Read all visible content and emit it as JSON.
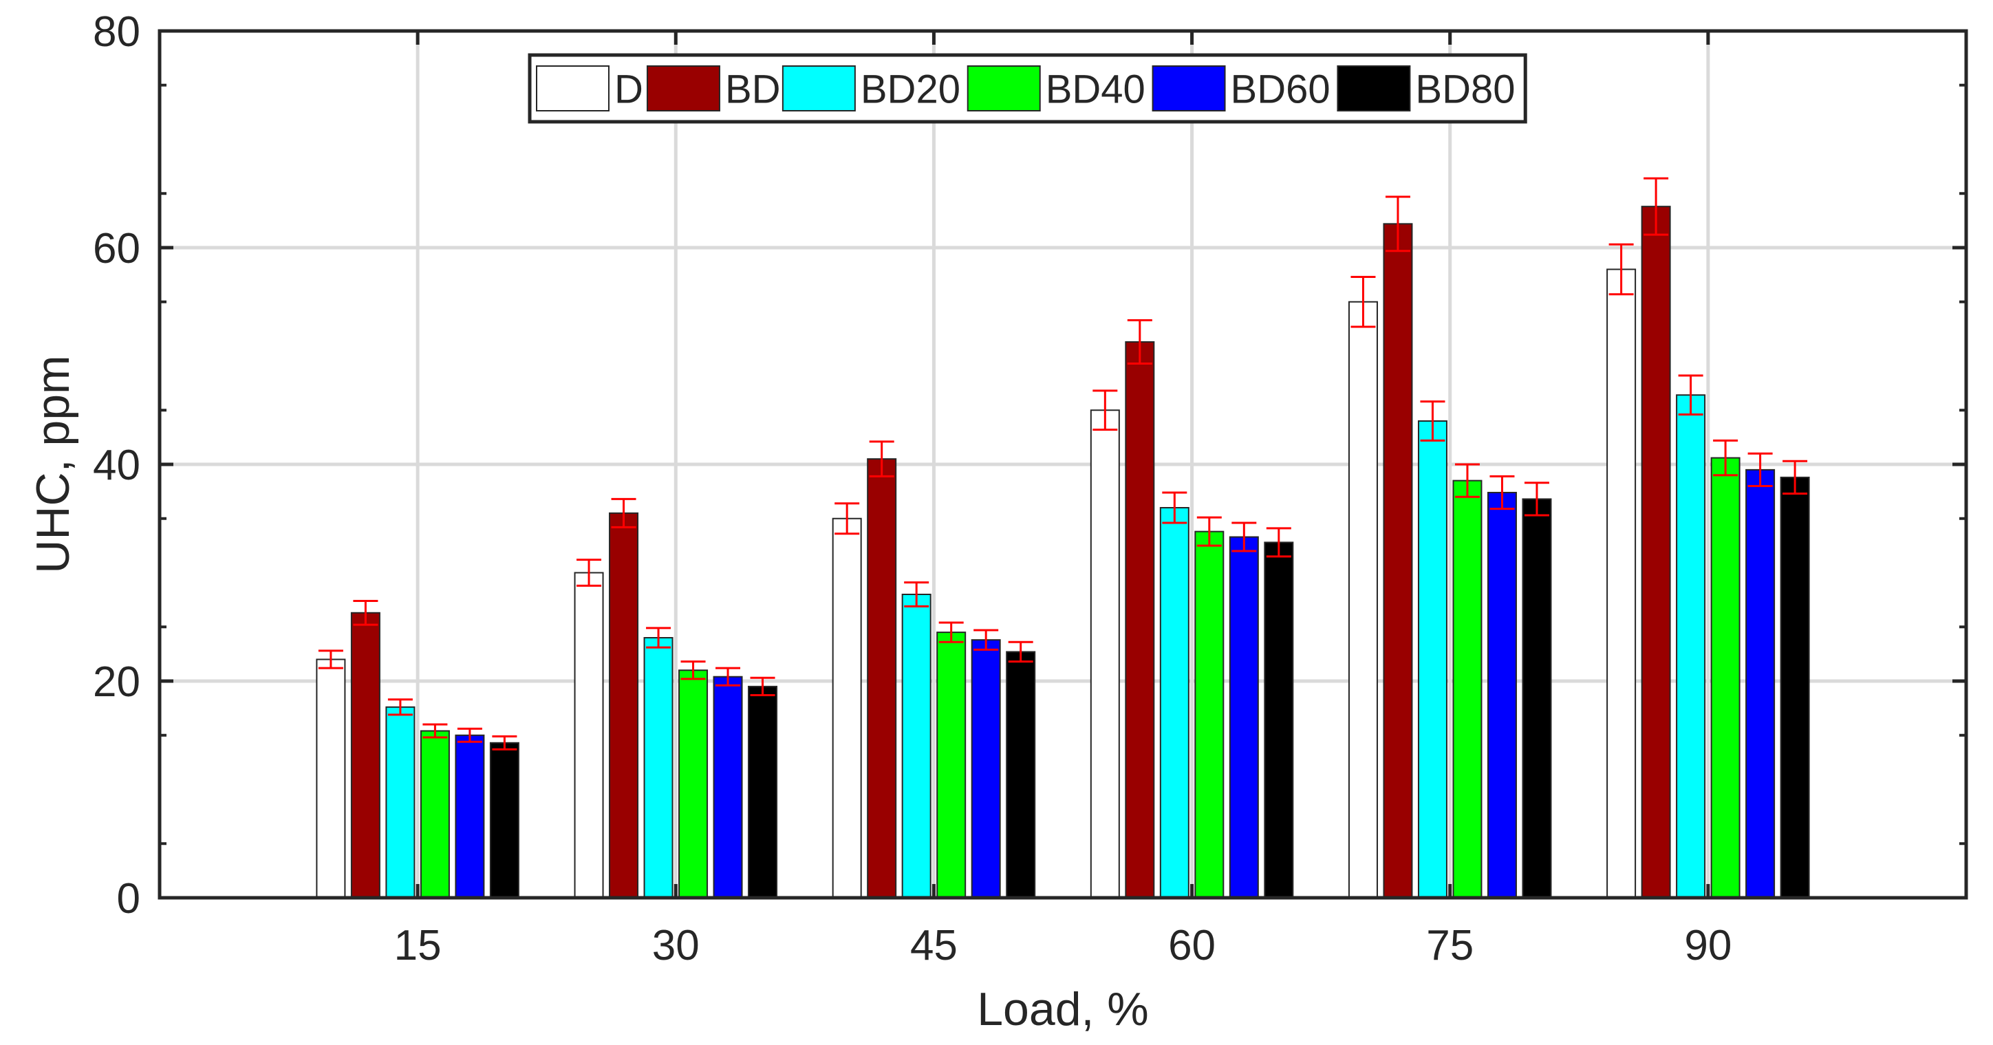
{
  "chart_data": {
    "type": "bar",
    "xlabel": "Load, %",
    "ylabel": "UHC, ppm",
    "categories": [
      "15",
      "30",
      "45",
      "60",
      "75",
      "90"
    ],
    "ylim": [
      0,
      80
    ],
    "yticks": [
      0,
      20,
      40,
      60,
      80
    ],
    "grid": true,
    "legend_position": "top-center",
    "legend_orientation": "horizontal",
    "error_bar_color": "#ff0000",
    "series": [
      {
        "name": "D",
        "color": "#ffffff",
        "values": [
          22,
          30,
          35,
          45,
          55,
          58
        ],
        "errors": [
          0.8,
          1.2,
          1.4,
          1.8,
          2.3,
          2.3
        ]
      },
      {
        "name": "BD",
        "color": "#990000",
        "values": [
          26.3,
          35.5,
          40.5,
          51.3,
          62.2,
          63.8
        ],
        "errors": [
          1.1,
          1.3,
          1.6,
          2.0,
          2.5,
          2.6
        ]
      },
      {
        "name": "BD20",
        "color": "#00ffff",
        "values": [
          17.6,
          24,
          28,
          36,
          44,
          46.4
        ],
        "errors": [
          0.7,
          0.9,
          1.1,
          1.4,
          1.8,
          1.8
        ]
      },
      {
        "name": "BD40",
        "color": "#00ff00",
        "values": [
          15.4,
          21,
          24.5,
          33.8,
          38.5,
          40.6
        ],
        "errors": [
          0.6,
          0.8,
          0.9,
          1.3,
          1.5,
          1.6
        ]
      },
      {
        "name": "BD60",
        "color": "#0000ff",
        "values": [
          15,
          20.4,
          23.8,
          33.3,
          37.4,
          39.5
        ],
        "errors": [
          0.6,
          0.8,
          0.9,
          1.3,
          1.5,
          1.5
        ]
      },
      {
        "name": "BD80",
        "color": "#000000",
        "values": [
          14.3,
          19.5,
          22.7,
          32.8,
          36.8,
          38.8
        ],
        "errors": [
          0.6,
          0.8,
          0.9,
          1.3,
          1.5,
          1.5
        ]
      }
    ]
  }
}
